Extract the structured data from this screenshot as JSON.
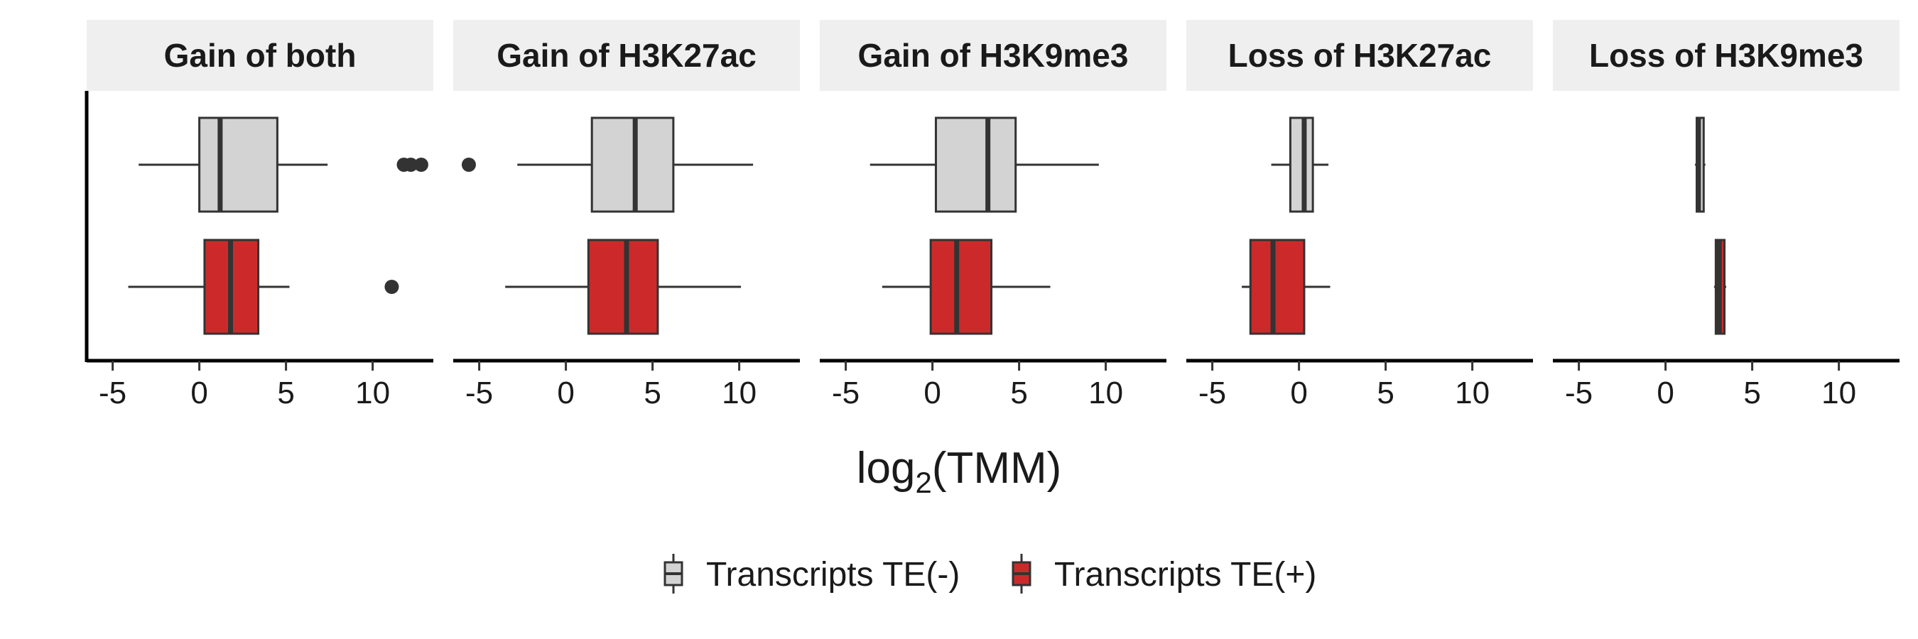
{
  "chart_data": {
    "type": "boxplot",
    "orientation": "horizontal",
    "xlabel": {
      "base": "log",
      "sub": "2",
      "arg": "(TMM)"
    },
    "xlim": [
      -6.5,
      13.5
    ],
    "xticks": [
      -5,
      0,
      5,
      10
    ],
    "xtick_labels": [
      "-5",
      "0",
      "5",
      "10"
    ],
    "grid": false,
    "legend_position": "bottom",
    "series": [
      {
        "key": "te_minus",
        "name": "Transcripts TE(-)",
        "color": "#d3d3d3"
      },
      {
        "key": "te_plus",
        "name": "Transcripts TE(+)",
        "color": "#cc2a2a"
      }
    ],
    "facets": [
      {
        "label": "Gain of both",
        "boxes": {
          "te_minus": {
            "whisker_low": -3.5,
            "q1": 0.0,
            "median": 1.2,
            "q3": 4.5,
            "whisker_high": 7.4,
            "outliers": [
              11.8,
              12.2,
              12.8
            ]
          },
          "te_plus": {
            "whisker_low": -4.1,
            "q1": 0.3,
            "median": 1.8,
            "q3": 3.4,
            "whisker_high": 5.2,
            "outliers": [
              11.1
            ]
          }
        }
      },
      {
        "label": "Gain of H3K27ac",
        "boxes": {
          "te_minus": {
            "whisker_low": -2.8,
            "q1": 1.5,
            "median": 4.0,
            "q3": 6.2,
            "whisker_high": 10.8,
            "outliers": [
              -5.6
            ]
          },
          "te_plus": {
            "whisker_low": -3.5,
            "q1": 1.3,
            "median": 3.5,
            "q3": 5.3,
            "whisker_high": 10.1,
            "outliers": []
          }
        }
      },
      {
        "label": "Gain of H3K9me3",
        "boxes": {
          "te_minus": {
            "whisker_low": -3.6,
            "q1": 0.2,
            "median": 3.2,
            "q3": 4.8,
            "whisker_high": 9.6,
            "outliers": []
          },
          "te_plus": {
            "whisker_low": -2.9,
            "q1": -0.1,
            "median": 1.4,
            "q3": 3.4,
            "whisker_high": 6.8,
            "outliers": []
          }
        }
      },
      {
        "label": "Loss of H3K27ac",
        "boxes": {
          "te_minus": {
            "whisker_low": -1.6,
            "q1": -0.5,
            "median": 0.3,
            "q3": 0.8,
            "whisker_high": 1.7,
            "outliers": []
          },
          "te_plus": {
            "whisker_low": -3.3,
            "q1": -2.8,
            "median": -1.5,
            "q3": 0.3,
            "whisker_high": 1.8,
            "outliers": []
          }
        }
      },
      {
        "label": "Loss of H3K9me3",
        "boxes": {
          "te_minus": {
            "whisker_low": 1.7,
            "q1": 1.8,
            "median": 1.9,
            "q3": 2.2,
            "whisker_high": 2.3,
            "outliers": []
          },
          "te_plus": {
            "whisker_low": 2.8,
            "q1": 2.9,
            "median": 3.1,
            "q3": 3.4,
            "whisker_high": 3.5,
            "outliers": []
          }
        }
      }
    ]
  }
}
